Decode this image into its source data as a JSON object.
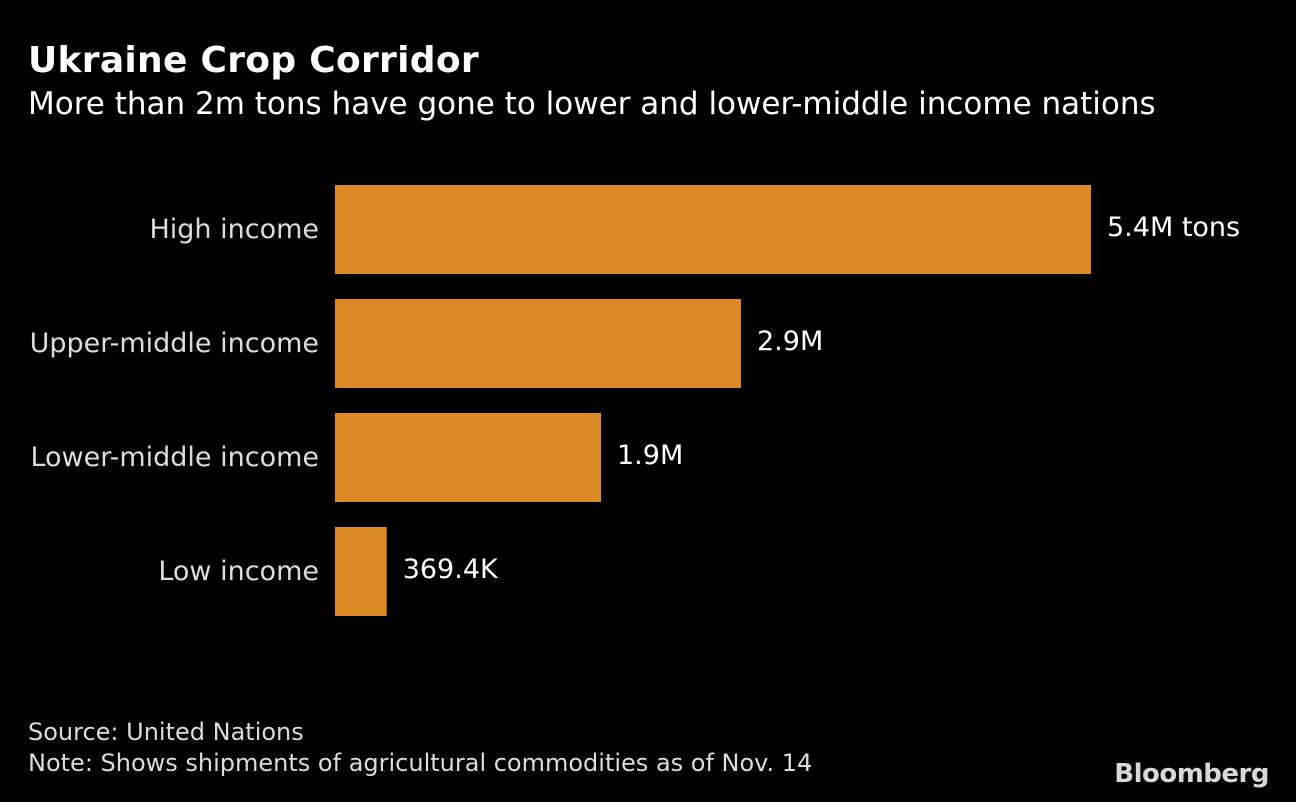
{
  "header": {
    "title": "Ukraine Crop Corridor",
    "subtitle": "More than 2m tons have gone to lower and lower-middle income nations"
  },
  "chart_data": {
    "type": "bar",
    "orientation": "horizontal",
    "title": "Ukraine Crop Corridor",
    "subtitle": "More than 2m tons have gone to lower and lower-middle income nations",
    "categories": [
      "High income",
      "Upper-middle income",
      "Lower-middle income",
      "Low income"
    ],
    "values": [
      5.4,
      2.9,
      1.9,
      0.3694
    ],
    "unit": "million tons",
    "data_labels": [
      "5.4M tons",
      "2.9M",
      "1.9M",
      "369.4K"
    ],
    "bar_color": "#dd8a26",
    "xlim": [
      0,
      5.4
    ],
    "xlabel": "",
    "ylabel": "",
    "grid": false
  },
  "footer": {
    "source": "Source: United Nations",
    "note": "Note: Shows shipments of agricultural commodities as of Nov. 14",
    "brand": "Bloomberg"
  }
}
